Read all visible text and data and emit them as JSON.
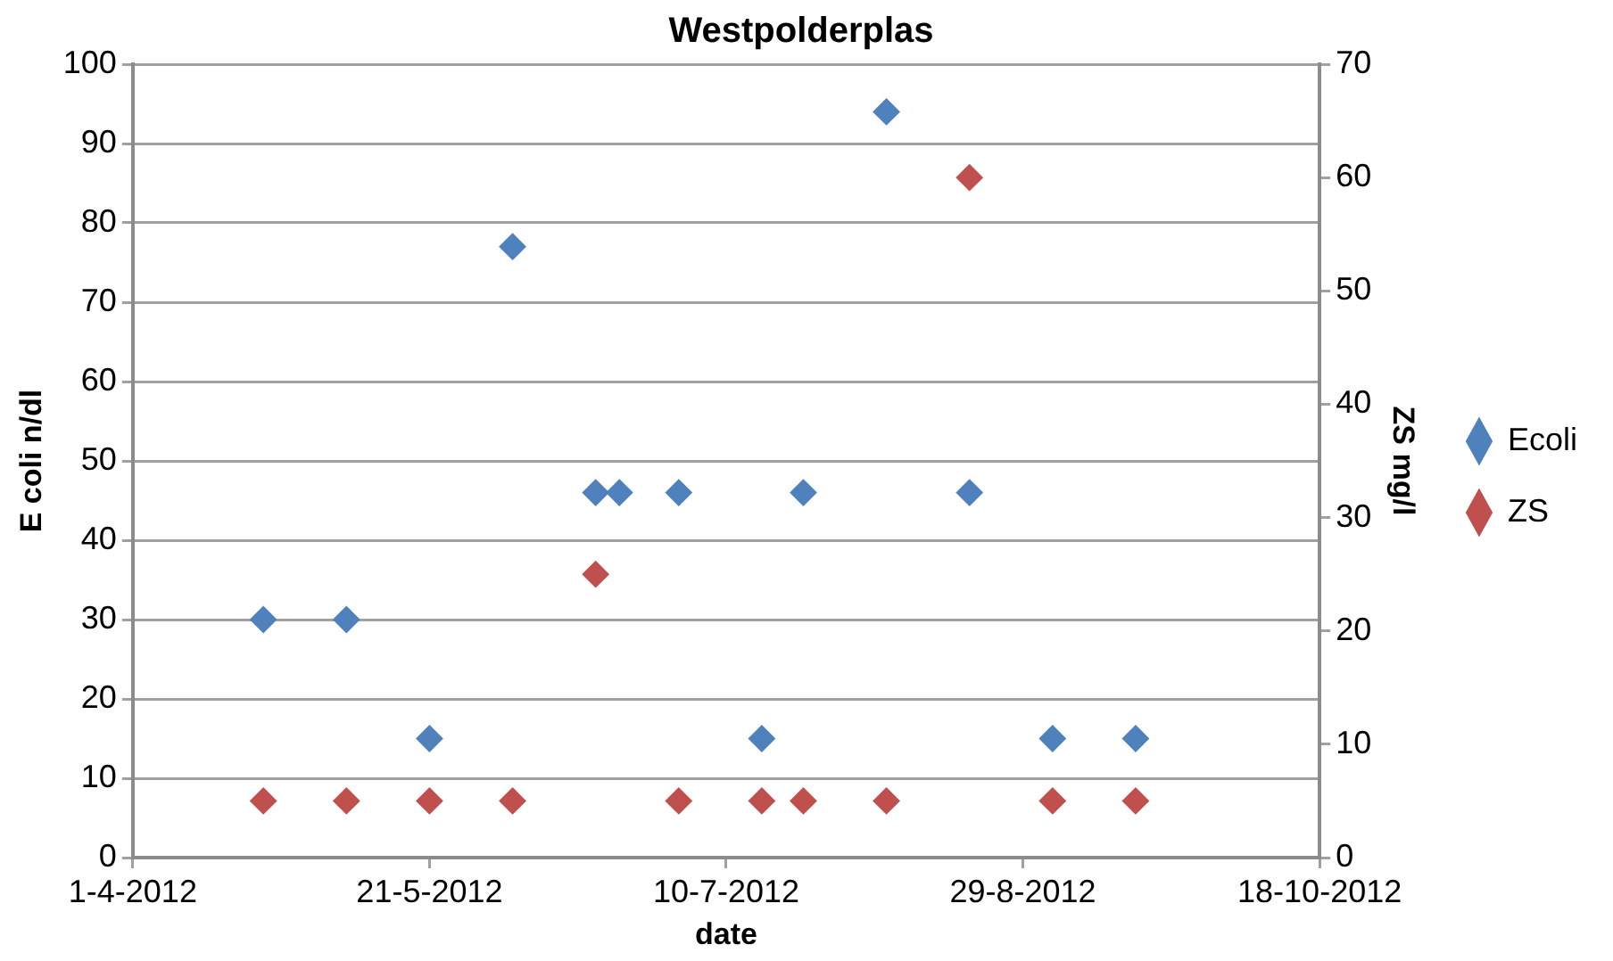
{
  "chart_data": {
    "type": "scatter",
    "title": "Westpolderplas",
    "xlabel": "date",
    "ylabel": "E coli n/dl",
    "y2label": "ZS mg/l",
    "series": [
      {
        "name": "Ecoli",
        "color": "#4f81bd",
        "x": [
          "2012-04-23",
          "2012-05-07",
          "2012-05-21",
          "2012-06-04",
          "2012-06-18",
          "2012-06-22",
          "2012-07-02",
          "2012-07-16",
          "2012-07-23",
          "2012-08-06",
          "2012-08-20",
          "2012-09-03",
          "2012-09-17"
        ],
        "values": [
          30,
          30,
          15,
          77,
          46,
          46,
          46,
          15,
          46,
          94,
          46,
          15,
          15
        ]
      },
      {
        "name": "ZS",
        "color": "#c0504d",
        "axis": "y2",
        "x": [
          "2012-04-23",
          "2012-05-07",
          "2012-05-21",
          "2012-06-04",
          "2012-06-18",
          "2012-07-02",
          "2012-07-16",
          "2012-07-23",
          "2012-08-06",
          "2012-08-20",
          "2012-09-03",
          "2012-09-17"
        ],
        "values": [
          5,
          5,
          5,
          5,
          25,
          5,
          5,
          5,
          5,
          60,
          5,
          5
        ]
      }
    ],
    "xlim": [
      "2012-04-01",
      "2012-10-18"
    ],
    "xticks": [
      {
        "value": "2012-04-01",
        "label": "1-4-2012"
      },
      {
        "value": "2012-05-21",
        "label": "21-5-2012"
      },
      {
        "value": "2012-07-10",
        "label": "10-7-2012"
      },
      {
        "value": "2012-08-29",
        "label": "29-8-2012"
      },
      {
        "value": "2012-10-18",
        "label": "18-10-2012"
      }
    ],
    "ylim": [
      0,
      100
    ],
    "yticks": [
      0,
      10,
      20,
      30,
      40,
      50,
      60,
      70,
      80,
      90,
      100
    ],
    "y2lim": [
      0,
      70
    ],
    "y2ticks": [
      0,
      10,
      20,
      30,
      40,
      50,
      60,
      70
    ],
    "grid": "y",
    "legend": "right",
    "marker": "diamond"
  }
}
